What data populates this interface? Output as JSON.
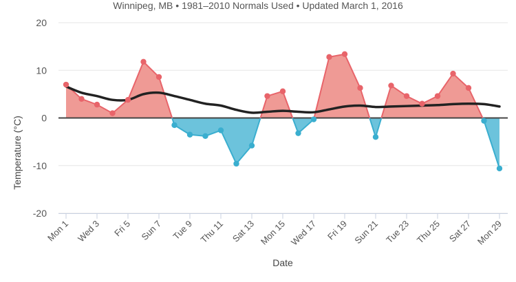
{
  "chart_data": {
    "type": "area",
    "subtitle": "Winnipeg, MB • 1981–2010 Normals Used • Updated March 1, 2016",
    "xlabel": "Date",
    "ylabel": "Temperature (°C)",
    "ylim": [
      -20,
      20
    ],
    "yticks": [
      20,
      10,
      0,
      -10,
      -20
    ],
    "day_range": [
      1,
      29
    ],
    "xtick_labels": [
      {
        "day": 1,
        "label": "Mon 1"
      },
      {
        "day": 3,
        "label": "Wed 3"
      },
      {
        "day": 5,
        "label": "Fri 5"
      },
      {
        "day": 7,
        "label": "Sun 7"
      },
      {
        "day": 9,
        "label": "Tue 9"
      },
      {
        "day": 11,
        "label": "Thu 11"
      },
      {
        "day": 13,
        "label": "Sat 13"
      },
      {
        "day": 15,
        "label": "Mon 15"
      },
      {
        "day": 17,
        "label": "Wed 17"
      },
      {
        "day": 19,
        "label": "Fri 19"
      },
      {
        "day": 21,
        "label": "Sun 21"
      },
      {
        "day": 23,
        "label": "Tue 23"
      },
      {
        "day": 25,
        "label": "Thu 25"
      },
      {
        "day": 27,
        "label": "Sat 27"
      },
      {
        "day": 29,
        "label": "Mon 29"
      }
    ],
    "series": [
      {
        "values": [
          7.0,
          4.0,
          2.8,
          1.0,
          3.8,
          11.8,
          8.6,
          -1.5,
          -3.5,
          -3.8,
          -2.6,
          -9.6,
          -5.8,
          4.6,
          5.6,
          -3.2,
          -0.3,
          12.8,
          13.4,
          6.3,
          -4.0,
          6.8,
          4.6,
          3.0,
          4.6,
          9.3,
          6.3,
          -0.6,
          -10.6
        ]
      },
      {
        "values": [
          6.6,
          5.3,
          4.6,
          3.8,
          3.8,
          5.0,
          5.3,
          4.6,
          3.8,
          3.0,
          2.6,
          1.7,
          1.1,
          1.3,
          1.5,
          1.3,
          1.2,
          1.8,
          2.4,
          2.6,
          2.3,
          2.4,
          2.5,
          2.6,
          2.7,
          2.9,
          3.0,
          2.9,
          2.4
        ]
      }
    ],
    "colors": {
      "above_fill": "#ef9a95",
      "above_line": "#e8646a",
      "below_fill": "#6cc3dc",
      "below_line": "#3aaecf",
      "normal_line": "#222222",
      "zero_line": "#444444",
      "grid": "#e6e6e6"
    }
  }
}
